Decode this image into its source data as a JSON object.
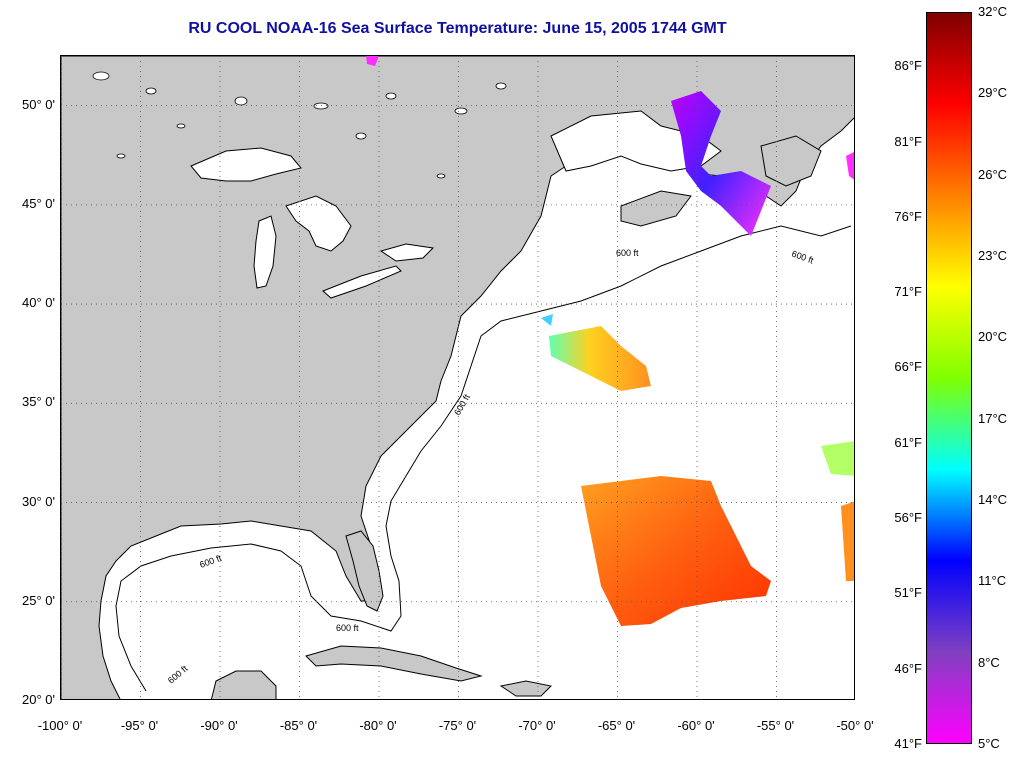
{
  "title": "RU COOL  NOAA-16  Sea Surface Temperature:  June 15, 2005 1744 GMT",
  "map": {
    "lon_range": [
      -100,
      -50
    ],
    "lat_range": [
      20,
      52.5
    ],
    "land_color": "#c8c8c8",
    "ocean_color": "#ffffff",
    "grid": true,
    "contour_label": "600 ft",
    "lat_ticks": [
      {
        "value": 50,
        "label": "50° 0'"
      },
      {
        "value": 45,
        "label": "45° 0'"
      },
      {
        "value": 40,
        "label": "40° 0'"
      },
      {
        "value": 35,
        "label": "35° 0'"
      },
      {
        "value": 30,
        "label": "30° 0'"
      },
      {
        "value": 25,
        "label": "25° 0'"
      },
      {
        "value": 20,
        "label": "20° 0'"
      }
    ],
    "lon_ticks": [
      {
        "value": -100,
        "label": "-100° 0'"
      },
      {
        "value": -95,
        "label": "-95° 0'"
      },
      {
        "value": -90,
        "label": "-90° 0'"
      },
      {
        "value": -85,
        "label": "-85° 0'"
      },
      {
        "value": -80,
        "label": "-80° 0'"
      },
      {
        "value": -75,
        "label": "-75° 0'"
      },
      {
        "value": -70,
        "label": "-70° 0'"
      },
      {
        "value": -65,
        "label": "-65° 0'"
      },
      {
        "value": -60,
        "label": "-60° 0'"
      },
      {
        "value": -55,
        "label": "-55° 0'"
      },
      {
        "value": -50,
        "label": "-50° 0'"
      }
    ]
  },
  "colorbar": {
    "range_c": [
      5,
      32
    ],
    "celsius_labels": [
      {
        "value": 32,
        "label": "32°C"
      },
      {
        "value": 29,
        "label": "29°C"
      },
      {
        "value": 26,
        "label": "26°C"
      },
      {
        "value": 23,
        "label": "23°C"
      },
      {
        "value": 20,
        "label": "20°C"
      },
      {
        "value": 17,
        "label": "17°C"
      },
      {
        "value": 14,
        "label": "14°C"
      },
      {
        "value": 11,
        "label": "11°C"
      },
      {
        "value": 8,
        "label": "8°C"
      },
      {
        "value": 5,
        "label": "5°C"
      }
    ],
    "fahrenheit_labels": [
      {
        "value": 86,
        "label": "86°F"
      },
      {
        "value": 81,
        "label": "81°F"
      },
      {
        "value": 76,
        "label": "76°F"
      },
      {
        "value": 71,
        "label": "71°F"
      },
      {
        "value": 66,
        "label": "66°F"
      },
      {
        "value": 61,
        "label": "61°F"
      },
      {
        "value": 56,
        "label": "56°F"
      },
      {
        "value": 51,
        "label": "51°F"
      },
      {
        "value": 46,
        "label": "46°F"
      },
      {
        "value": 41,
        "label": "41°F"
      }
    ],
    "stops": [
      "#800000",
      "#ff0000",
      "#ff8000",
      "#ffff00",
      "#80ff00",
      "#00ffff",
      "#0000ff",
      "#8040c0",
      "#ff00ff"
    ]
  }
}
